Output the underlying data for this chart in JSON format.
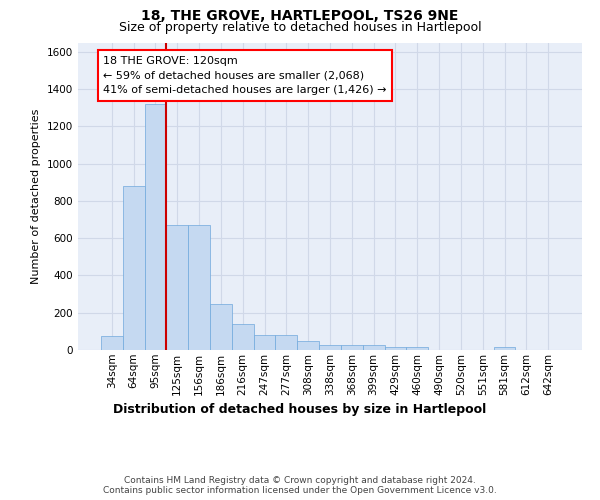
{
  "title": "18, THE GROVE, HARTLEPOOL, TS26 9NE",
  "subtitle": "Size of property relative to detached houses in Hartlepool",
  "xlabel": "Distribution of detached houses by size in Hartlepool",
  "ylabel": "Number of detached properties",
  "bar_color": "#c5d9f1",
  "bar_edge_color": "#6fa8dc",
  "categories": [
    "34sqm",
    "64sqm",
    "95sqm",
    "125sqm",
    "156sqm",
    "186sqm",
    "216sqm",
    "247sqm",
    "277sqm",
    "308sqm",
    "338sqm",
    "368sqm",
    "399sqm",
    "429sqm",
    "460sqm",
    "490sqm",
    "520sqm",
    "551sqm",
    "581sqm",
    "612sqm",
    "642sqm"
  ],
  "values": [
    75,
    880,
    1320,
    670,
    670,
    245,
    140,
    80,
    80,
    50,
    25,
    25,
    25,
    15,
    15,
    0,
    0,
    0,
    18,
    0,
    0
  ],
  "ylim": [
    0,
    1650
  ],
  "yticks": [
    0,
    200,
    400,
    600,
    800,
    1000,
    1200,
    1400,
    1600
  ],
  "vline_x_idx": 2.5,
  "vline_color": "#cc0000",
  "annotation_line1": "18 THE GROVE: 120sqm",
  "annotation_line2": "← 59% of detached houses are smaller (2,068)",
  "annotation_line3": "41% of semi-detached houses are larger (1,426) →",
  "bg_color": "#e8eef8",
  "grid_color": "#d0d8e8",
  "title_fontsize": 10,
  "subtitle_fontsize": 9,
  "ylabel_fontsize": 8,
  "xlabel_fontsize": 9,
  "tick_fontsize": 7.5,
  "annot_fontsize": 8,
  "footer_fontsize": 6.5,
  "footer_text": "Contains HM Land Registry data © Crown copyright and database right 2024.\nContains public sector information licensed under the Open Government Licence v3.0."
}
